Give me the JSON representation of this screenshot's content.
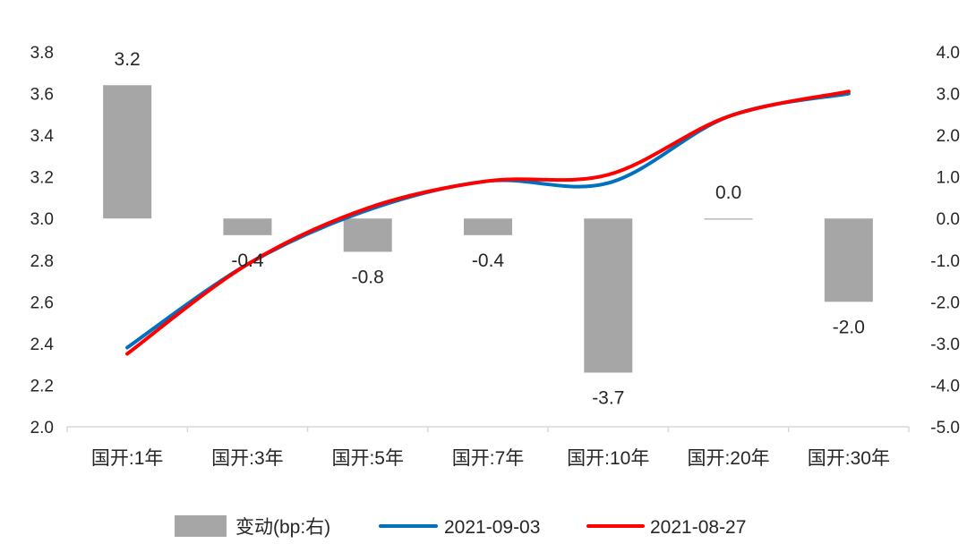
{
  "chart_data": {
    "type": "bar+line",
    "categories": [
      "国开:1年",
      "国开:3年",
      "国开:5年",
      "国开:7年",
      "国开:10年",
      "国开:20年",
      "国开:30年"
    ],
    "left_axis": {
      "min": 2.0,
      "max": 3.8,
      "step": 0.2,
      "ticks": [
        "2.0",
        "2.2",
        "2.4",
        "2.6",
        "2.8",
        "3.0",
        "3.2",
        "3.4",
        "3.6",
        "3.8"
      ]
    },
    "right_axis": {
      "min": -5.0,
      "max": 4.0,
      "step": 1.0,
      "ticks": [
        "-5.0",
        "-4.0",
        "-3.0",
        "-2.0",
        "-1.0",
        "0.0",
        "1.0",
        "2.0",
        "3.0",
        "4.0"
      ]
    },
    "bar_series": {
      "name": "变动(bp:右)",
      "axis": "right",
      "values": [
        3.2,
        -0.4,
        -0.8,
        -0.4,
        -3.7,
        0.0,
        -2.0
      ],
      "labels": [
        "3.2",
        "-0.4",
        "-0.8",
        "-0.4",
        "-3.7",
        "0.0",
        "-2.0"
      ],
      "color": "#a6a6a6"
    },
    "series": [
      {
        "name": "2021-09-03",
        "axis": "left",
        "color": "#0070c0",
        "values": [
          2.38,
          2.78,
          3.04,
          3.18,
          3.17,
          3.49,
          3.6
        ]
      },
      {
        "name": "2021-08-27",
        "axis": "left",
        "color": "#ff0000",
        "values": [
          2.35,
          2.78,
          3.05,
          3.18,
          3.21,
          3.49,
          3.61
        ]
      }
    ],
    "legend": {
      "placement": "bottom"
    },
    "grid": false
  }
}
